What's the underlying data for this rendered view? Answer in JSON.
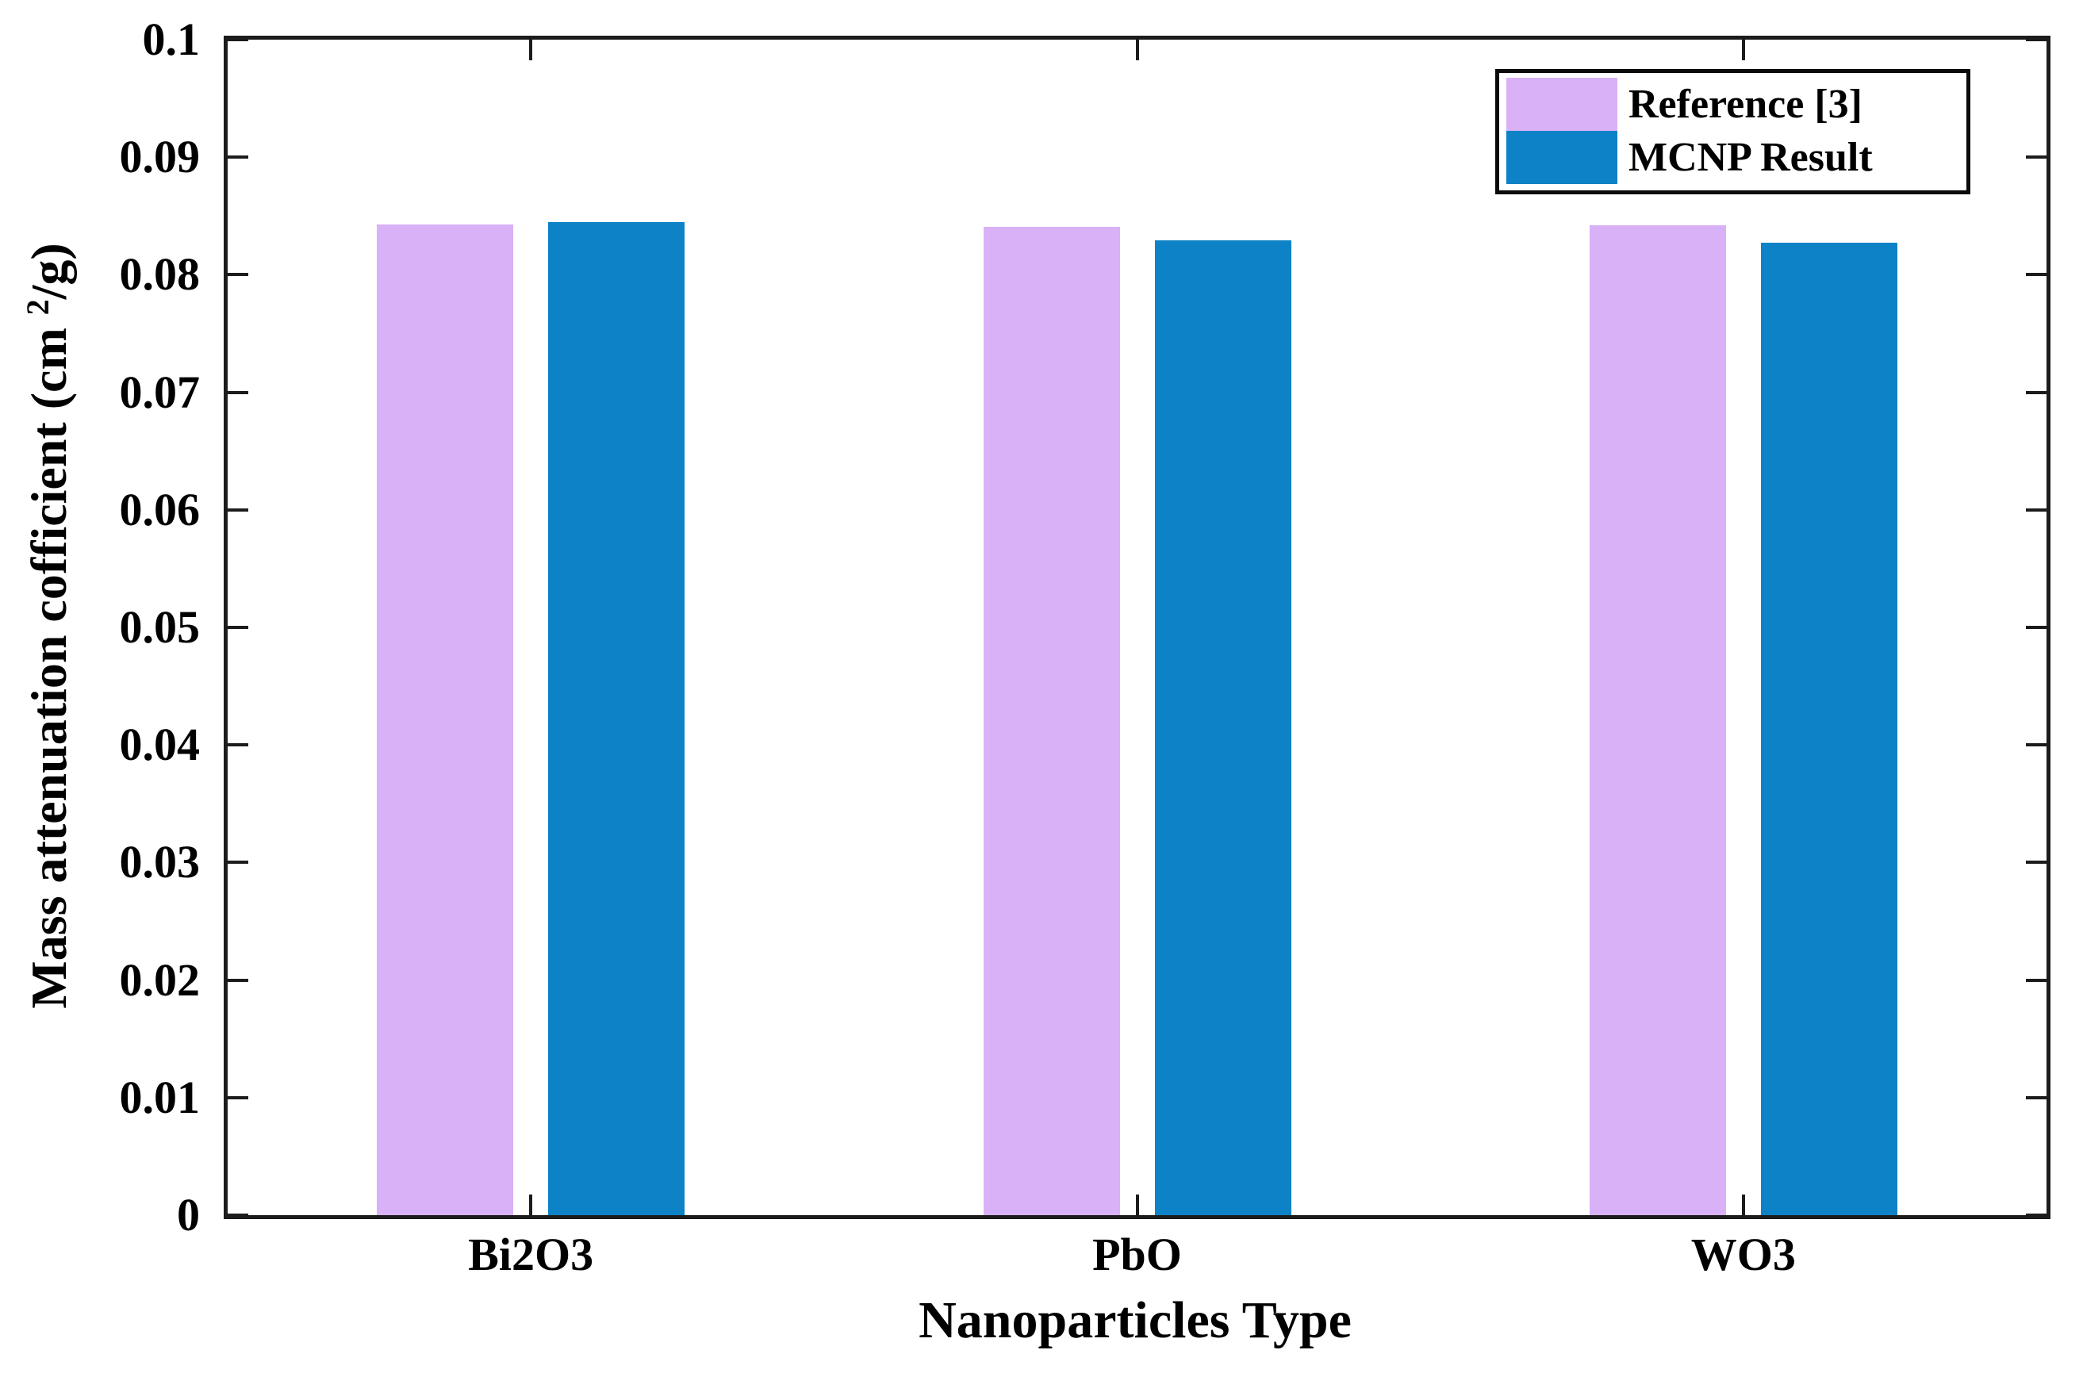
{
  "chart_data": {
    "type": "bar",
    "title": "",
    "xlabel": "Nanoparticles Type",
    "ylabel": "Mass attenuation cofficient (cm 2/g)",
    "ylabel_parts": {
      "prefix": "Mass attenuation cofficient (cm ",
      "sup": "2",
      "suffix": "/g)"
    },
    "categories": [
      "Bi2O3",
      "PbO",
      "WO3"
    ],
    "series": [
      {
        "name": "Reference [3]",
        "color": "#d9b1f7",
        "values": [
          0.0843,
          0.0841,
          0.0842
        ]
      },
      {
        "name": "MCNP Result",
        "color": "#0e82c6",
        "values": [
          0.0845,
          0.0829,
          0.0827
        ]
      }
    ],
    "ylim": [
      0,
      0.1
    ],
    "y_ticks": [
      0,
      0.01,
      0.02,
      0.03,
      0.04,
      0.05,
      0.06,
      0.07,
      0.08,
      0.09,
      0.1
    ],
    "y_tick_labels": [
      "0",
      "0.01",
      "0.02",
      "0.03",
      "0.04",
      "0.05",
      "0.06",
      "0.07",
      "0.08",
      "0.09",
      "0.1"
    ],
    "grid": false,
    "legend_position": "top-right",
    "colors": {
      "axis": "#1c1c1c",
      "text": "#000000",
      "background": "#ffffff"
    }
  }
}
